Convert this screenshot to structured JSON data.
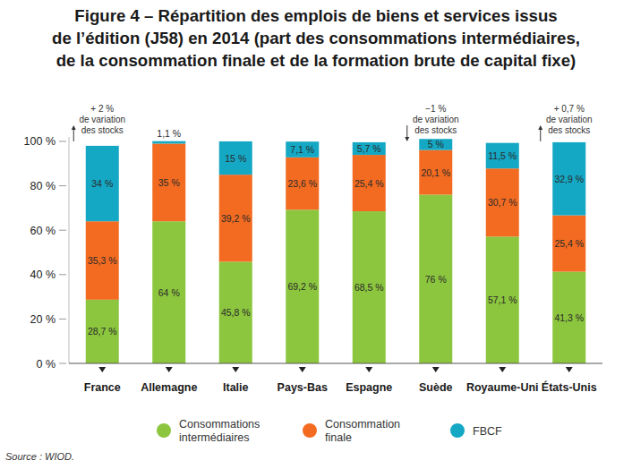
{
  "chart_data": {
    "type": "bar",
    "title": [
      "Figure 4 – Répartition des emplois de biens et services issus",
      "de l’édition (J58) en 2014 (part des consommations intermédiaires,",
      "de la consommation finale et de la formation brute de capital fixe)"
    ],
    "source": "Source : WIOD.",
    "categories": [
      "France",
      "Allemagne",
      "Italie",
      "Pays-Bas",
      "Espagne",
      "Suède",
      "Royaume-Uni",
      "États-Unis"
    ],
    "series": [
      {
        "name": "Consommations intermédiaires",
        "color": "#8cc63e",
        "values": [
          28.7,
          64,
          45.8,
          69.2,
          68.5,
          76,
          57.1,
          41.3
        ],
        "value_labels": [
          "28,7 %",
          "64 %",
          "45,8 %",
          "69,2 %",
          "68,5 %",
          "76 %",
          "57,1 %",
          "41,3 %"
        ]
      },
      {
        "name": "Consommation finale",
        "color": "#f26b21",
        "values": [
          35.3,
          35,
          39.2,
          23.6,
          25.4,
          20.1,
          30.7,
          25.4
        ],
        "value_labels": [
          "35,3 %",
          "35 %",
          "39,2 %",
          "23,6 %",
          "25,4 %",
          "20,1 %",
          "30,7 %",
          "25,4 %"
        ]
      },
      {
        "name": "FBCF",
        "color": "#14a8c4",
        "values": [
          34,
          1.1,
          15,
          7.1,
          5.7,
          5,
          11.5,
          32.9
        ],
        "value_labels": [
          "34 %",
          "1,1 %",
          "15 %",
          "7,1 %",
          "5,7 %",
          "5 %",
          "11,5 %",
          "32,9 %"
        ]
      }
    ],
    "stock_notes": [
      [
        "+ 2 %",
        "de variation",
        "des stocks"
      ],
      null,
      null,
      null,
      null,
      [
        "−1 %",
        "de variation",
        "des stocks"
      ],
      null,
      [
        "+ 0,7 %",
        "de variation",
        "des stocks"
      ]
    ],
    "ylim": [
      0,
      102
    ],
    "yticks": [
      {
        "value": 0,
        "label": "0 %"
      },
      {
        "value": 20,
        "label": "20 %"
      },
      {
        "value": 40,
        "label": "40 %"
      },
      {
        "value": 60,
        "label": "60 %"
      },
      {
        "value": 80,
        "label": "80 %"
      },
      {
        "value": 100,
        "label": "100 %"
      }
    ],
    "stacked": true,
    "data_labels": true,
    "grid": false,
    "legend": "bottom"
  }
}
